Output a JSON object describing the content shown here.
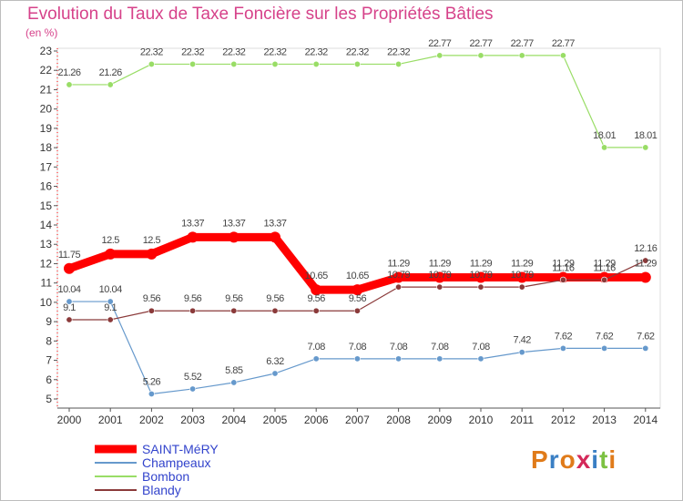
{
  "chart_data": {
    "type": "line",
    "title": "Evolution du Taux de Taxe Foncière sur les Propriétés Bâties",
    "subtitle": "(en %)",
    "xlabel": "",
    "ylabel": "",
    "ylim": [
      5,
      23
    ],
    "yticks": [
      "5",
      "6",
      "7",
      "8",
      "9",
      "10",
      "11",
      "12",
      "13",
      "14",
      "15",
      "16",
      "17",
      "18",
      "19",
      "20",
      "21",
      "22",
      "23"
    ],
    "categories": [
      "2000",
      "2001",
      "2002",
      "2003",
      "2004",
      "2005",
      "2006",
      "2007",
      "2008",
      "2009",
      "2010",
      "2011",
      "2012",
      "2013",
      "2014"
    ],
    "series": [
      {
        "name": "SAINT-MéRY",
        "color": "#ff0000",
        "values": [
          11.75,
          12.5,
          12.5,
          13.37,
          13.37,
          13.37,
          10.65,
          10.65,
          11.29,
          11.29,
          11.29,
          11.29,
          11.29,
          11.29,
          11.29
        ],
        "labels": [
          "11.75",
          "12.5",
          "12.5",
          "13.37",
          "13.37",
          "13.37",
          "10.65",
          "10.65",
          "11.29",
          "11.29",
          "11.29",
          "11.29",
          "11.29",
          "11.29",
          "11.29"
        ]
      },
      {
        "name": "Champeaux",
        "color": "#6699cc",
        "values": [
          10.04,
          10.04,
          5.26,
          5.52,
          5.85,
          6.32,
          7.08,
          7.08,
          7.08,
          7.08,
          7.08,
          7.42,
          7.62,
          7.62,
          7.62
        ],
        "labels": [
          "10.04",
          "10.04",
          "5.26",
          "5.52",
          "5.85",
          "6.32",
          "7.08",
          "7.08",
          "7.08",
          "7.08",
          "7.08",
          "7.42",
          "7.62",
          "7.62",
          "7.62"
        ]
      },
      {
        "name": "Bombon",
        "color": "#99dd66",
        "values": [
          21.26,
          21.26,
          22.32,
          22.32,
          22.32,
          22.32,
          22.32,
          22.32,
          22.32,
          22.77,
          22.77,
          22.77,
          22.77,
          18.01,
          18.01
        ],
        "labels": [
          "21.26",
          "21.26",
          "22.32",
          "22.32",
          "22.32",
          "22.32",
          "22.32",
          "22.32",
          "22.32",
          "22.77",
          "22.77",
          "22.77",
          "22.77",
          "18.01",
          "18.01"
        ]
      },
      {
        "name": "Blandy",
        "color": "#8b3a3a",
        "values": [
          9.1,
          9.1,
          9.56,
          9.56,
          9.56,
          9.56,
          9.56,
          9.56,
          10.79,
          10.79,
          10.79,
          10.79,
          11.16,
          11.16,
          12.16
        ],
        "labels": [
          "9.1",
          "9.1",
          "9.56",
          "9.56",
          "9.56",
          "9.56",
          "9.56",
          "9.56",
          "10.79",
          "10.79",
          "10.79",
          "10.79",
          "11.16",
          "11.16",
          "12.16"
        ]
      }
    ],
    "legend": "bottom-left"
  },
  "logo": {
    "text": "Proxiti"
  }
}
